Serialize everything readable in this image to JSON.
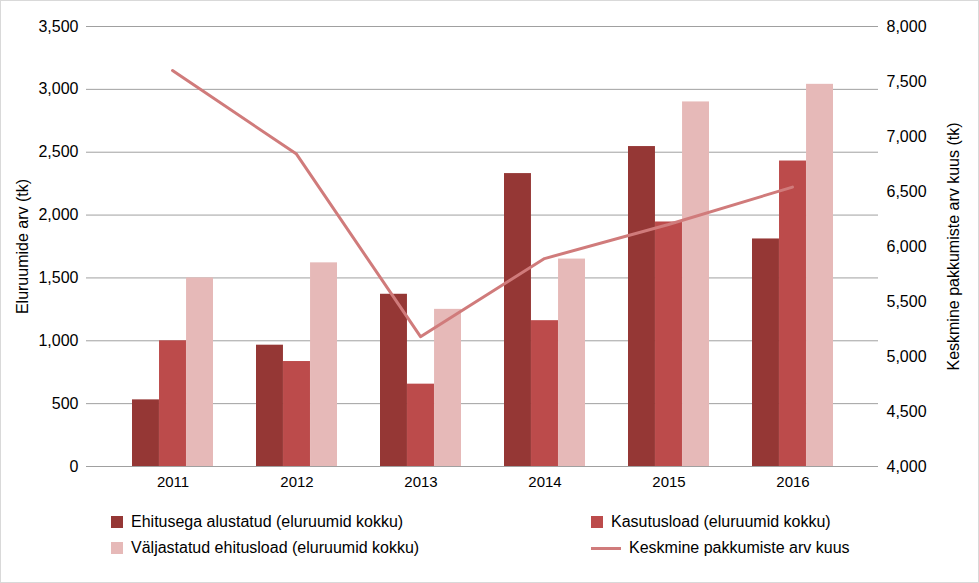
{
  "chart_data": {
    "type": "bar",
    "categories": [
      "2011",
      "2012",
      "2013",
      "2014",
      "2015",
      "2016"
    ],
    "series": [
      {
        "name": "Ehitusega alustatud (eluruumid kokku)",
        "color": "#953735",
        "values": [
          530,
          965,
          1370,
          2330,
          2545,
          1810
        ]
      },
      {
        "name": "Kasutusload (eluruumid kokku)",
        "color": "#bc4b4b",
        "values": [
          1000,
          835,
          655,
          1160,
          1945,
          2430
        ]
      },
      {
        "name": "Väljastatud ehitusload (eluruumid kokku)",
        "color": "#e6b9b8",
        "values": [
          1500,
          1620,
          1250,
          1650,
          2900,
          3040
        ]
      },
      {
        "name": "Keskmine pakkumiste arv kuus",
        "type": "line",
        "axis": "y2",
        "color": "#d07b7b",
        "values": [
          7600,
          6840,
          5180,
          5890,
          6200,
          6540
        ]
      }
    ],
    "ylabel": "Eluruumide arv (tk)",
    "y2label": "Keskmine pakkumiste arv kuus (tk)",
    "ylim": [
      0,
      3500
    ],
    "yticks": [
      0,
      500,
      1000,
      1500,
      2000,
      2500,
      3000,
      3500
    ],
    "y2lim": [
      4000,
      8000
    ],
    "y2ticks": [
      4000,
      4500,
      5000,
      5500,
      6000,
      6500,
      7000,
      7500,
      8000
    ],
    "grid": true,
    "legend": "bottom"
  }
}
